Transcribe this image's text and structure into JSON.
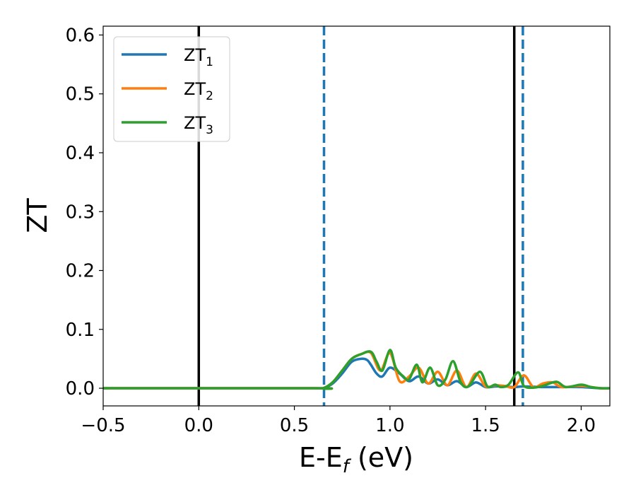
{
  "chart_data": {
    "type": "line",
    "xlabel": "E-E",
    "xlabel_sub": "f",
    "xlabel_unit": " (eV)",
    "ylabel": "ZT",
    "xlim": [
      -0.5,
      2.15
    ],
    "ylim": [
      -0.03,
      0.615
    ],
    "xticks": [
      -0.5,
      0.0,
      0.5,
      1.0,
      1.5,
      2.0
    ],
    "xtick_labels": [
      "−0.5",
      "0.0",
      "0.5",
      "1.0",
      "1.5",
      "2.0"
    ],
    "yticks": [
      0.0,
      0.1,
      0.2,
      0.3,
      0.4,
      0.5,
      0.6
    ],
    "ytick_labels": [
      "0.0",
      "0.1",
      "0.2",
      "0.3",
      "0.4",
      "0.5",
      "0.6"
    ],
    "legend_position": "top-left",
    "vertical_lines": [
      {
        "x": 0.0,
        "style": "solid",
        "color": "#000000"
      },
      {
        "x": 1.65,
        "style": "solid",
        "color": "#000000"
      },
      {
        "x": 0.655,
        "style": "dashed",
        "color": "#1f77b4"
      },
      {
        "x": 1.695,
        "style": "dashed",
        "color": "#1f77b4"
      }
    ],
    "series": [
      {
        "name": "ZT",
        "sub": "1",
        "color": "#1f77b4",
        "x": [
          -0.5,
          0.6,
          0.65,
          0.7,
          0.75,
          0.8,
          0.85,
          0.88,
          0.9,
          0.93,
          0.96,
          1.0,
          1.05,
          1.1,
          1.15,
          1.2,
          1.25,
          1.3,
          1.35,
          1.4,
          1.45,
          1.5,
          1.55,
          1.6,
          1.65,
          1.7,
          1.8,
          1.9,
          2.0,
          2.1,
          2.15
        ],
        "y": [
          0.0,
          0.0,
          0.0,
          0.008,
          0.025,
          0.045,
          0.05,
          0.048,
          0.04,
          0.025,
          0.02,
          0.035,
          0.025,
          0.012,
          0.02,
          0.008,
          0.015,
          0.005,
          0.012,
          0.002,
          0.01,
          0.002,
          0.003,
          0.003,
          0.002,
          0.003,
          0.002,
          0.002,
          0.002,
          0.0,
          0.0
        ]
      },
      {
        "name": "ZT",
        "sub": "2",
        "color": "#ff7f0e",
        "x": [
          -0.5,
          0.6,
          0.65,
          0.7,
          0.75,
          0.8,
          0.85,
          0.9,
          0.95,
          1.0,
          1.05,
          1.1,
          1.15,
          1.2,
          1.25,
          1.3,
          1.35,
          1.4,
          1.45,
          1.5,
          1.55,
          1.6,
          1.65,
          1.7,
          1.75,
          1.8,
          1.85,
          1.9,
          2.0,
          2.1,
          2.15
        ],
        "y": [
          0.0,
          0.0,
          0.0,
          0.01,
          0.03,
          0.05,
          0.058,
          0.06,
          0.03,
          0.06,
          0.012,
          0.02,
          0.035,
          0.008,
          0.028,
          0.005,
          0.03,
          0.002,
          0.025,
          0.003,
          0.005,
          0.004,
          0.002,
          0.022,
          0.002,
          0.008,
          0.01,
          0.002,
          0.004,
          0.0,
          0.0
        ]
      },
      {
        "name": "ZT",
        "sub": "3",
        "color": "#2ca02c",
        "x": [
          -0.5,
          0.6,
          0.65,
          0.7,
          0.75,
          0.8,
          0.85,
          0.9,
          0.93,
          0.96,
          1.0,
          1.03,
          1.07,
          1.1,
          1.14,
          1.17,
          1.21,
          1.25,
          1.29,
          1.33,
          1.37,
          1.41,
          1.47,
          1.51,
          1.55,
          1.58,
          1.62,
          1.67,
          1.7,
          1.75,
          1.8,
          1.87,
          1.92,
          2.0,
          2.05,
          2.1,
          2.15
        ],
        "y": [
          0.0,
          0.0,
          0.0,
          0.01,
          0.03,
          0.05,
          0.058,
          0.062,
          0.045,
          0.03,
          0.065,
          0.035,
          0.02,
          0.015,
          0.04,
          0.01,
          0.035,
          0.005,
          0.015,
          0.046,
          0.01,
          0.003,
          0.028,
          0.003,
          0.006,
          0.002,
          0.006,
          0.027,
          0.004,
          0.001,
          0.004,
          0.011,
          0.002,
          0.006,
          0.002,
          0.0,
          0.0
        ]
      }
    ]
  }
}
